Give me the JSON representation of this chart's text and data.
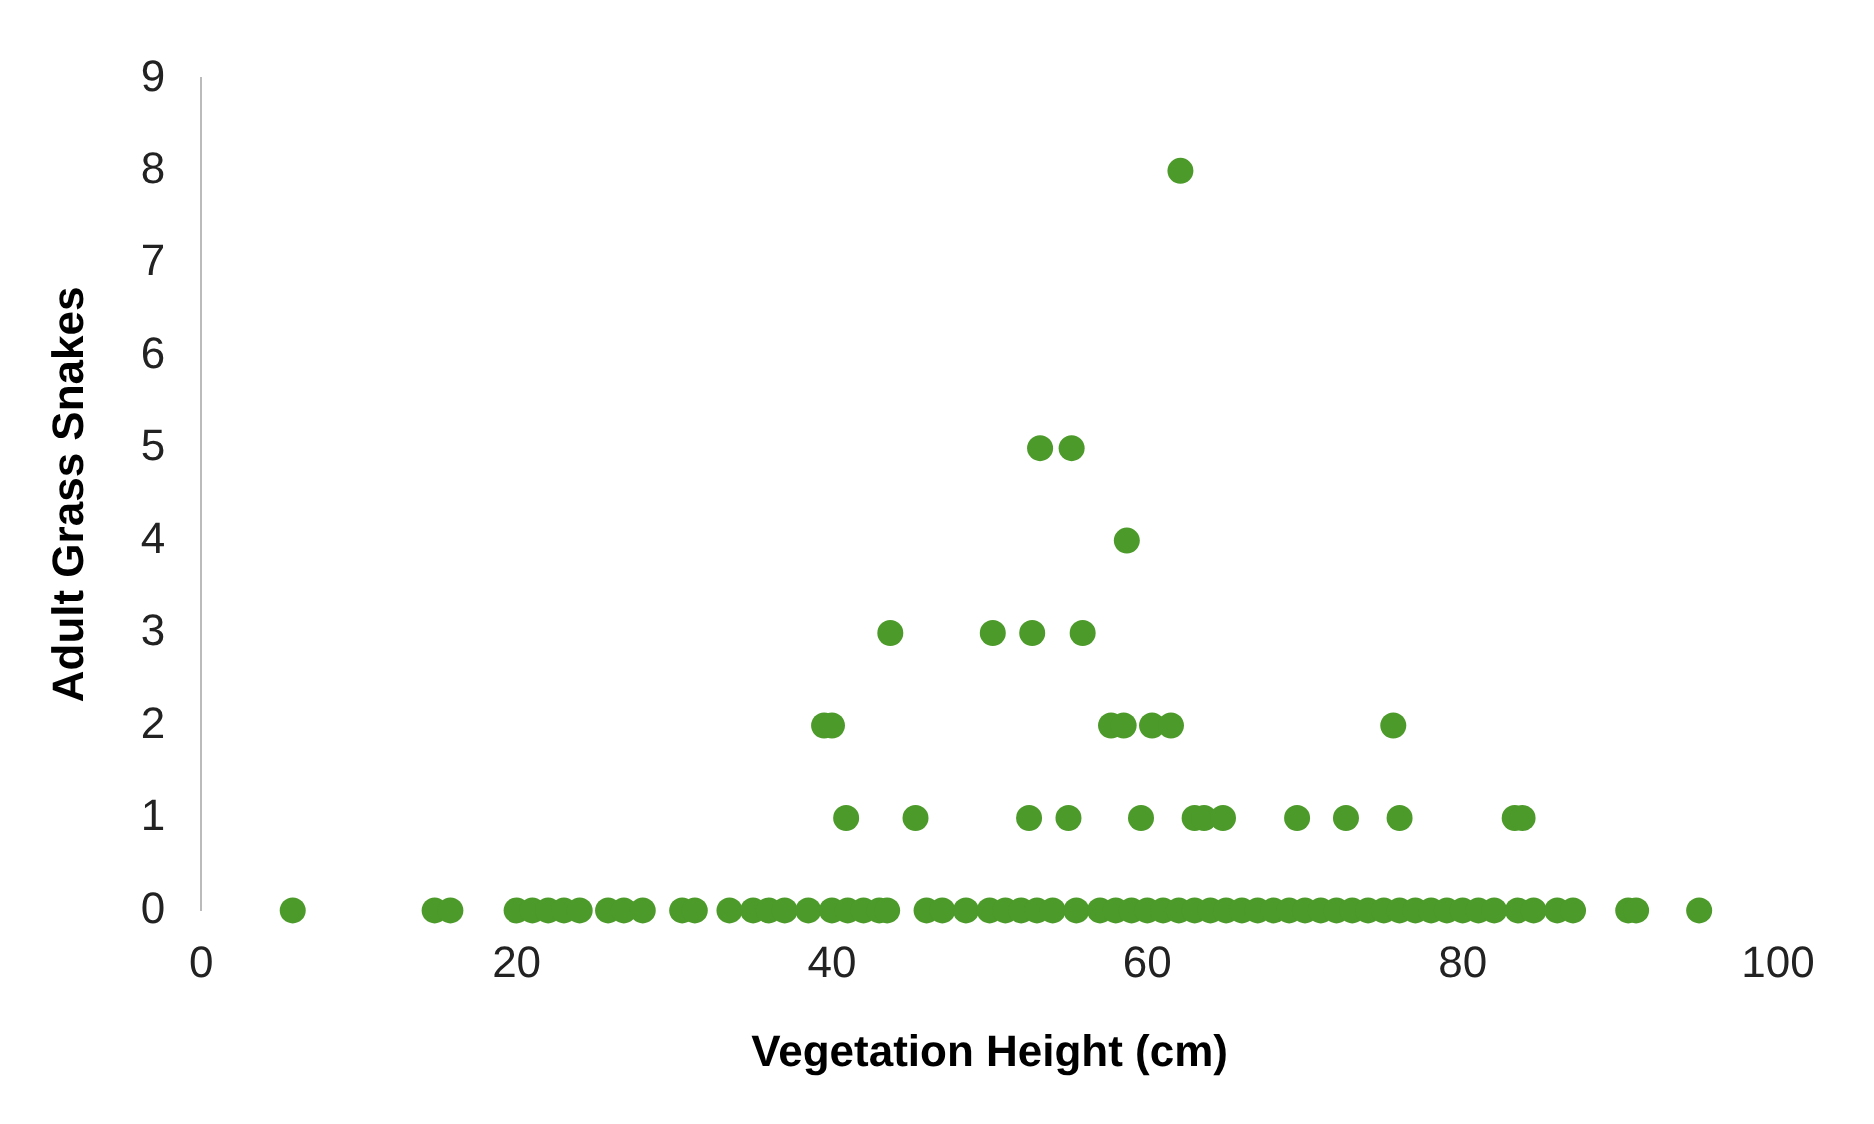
{
  "chart_data": {
    "type": "scatter",
    "xlabel": "Vegetation Height (cm)",
    "ylabel": "Adult Grass Snakes",
    "marker": "circle",
    "grid": false,
    "legend": false,
    "xlim": [
      0,
      100
    ],
    "xticks": [
      0,
      20,
      40,
      60,
      80,
      100
    ],
    "ylim": [
      0,
      9
    ],
    "yticks": [
      0,
      1,
      2,
      3,
      4,
      5,
      6,
      7,
      8,
      9
    ],
    "series": [
      {
        "color": "#4c9a2a",
        "x": [
          62.1,
          53.2,
          55.2,
          58.7,
          43.7,
          50.2,
          52.7,
          55.9,
          39.5,
          40,
          57.7,
          58.5,
          60.3,
          61.5,
          75.6,
          40.9,
          45.3,
          52.5,
          55,
          59.6,
          63,
          63.6,
          64.8,
          69.5,
          72.6,
          76,
          83.3,
          83.8,
          5.8,
          14.8,
          15.8,
          20,
          21,
          22,
          23,
          24,
          25.8,
          26.8,
          28,
          30.5,
          31.3,
          33.5,
          35,
          36,
          37,
          38.5,
          40,
          41,
          42,
          43,
          43.5,
          46,
          47,
          48.5,
          50,
          51,
          52,
          53,
          54,
          55.5,
          57,
          58,
          59,
          60,
          61,
          62,
          63,
          64,
          65,
          66,
          67,
          68,
          69,
          70,
          71,
          72,
          73,
          74,
          75,
          76,
          77,
          78,
          79,
          80,
          81,
          82,
          83.5,
          84.5,
          86,
          87,
          90.5,
          91,
          95
        ],
        "values": [
          8,
          5,
          5,
          4,
          3,
          3,
          3,
          3,
          2,
          2,
          2,
          2,
          2,
          2,
          2,
          1,
          1,
          1,
          1,
          1,
          1,
          1,
          1,
          1,
          1,
          1,
          1,
          1,
          0,
          0,
          0,
          0,
          0,
          0,
          0,
          0,
          0,
          0,
          0,
          0,
          0,
          0,
          0,
          0,
          0,
          0,
          0,
          0,
          0,
          0,
          0,
          0,
          0,
          0,
          0,
          0,
          0,
          0,
          0,
          0,
          0,
          0,
          0,
          0,
          0,
          0,
          0,
          0,
          0,
          0,
          0,
          0,
          0,
          0,
          0,
          0,
          0,
          0,
          0,
          0,
          0,
          0,
          0,
          0,
          0,
          0,
          0,
          0,
          0,
          0,
          0,
          0,
          0
        ]
      }
    ]
  }
}
